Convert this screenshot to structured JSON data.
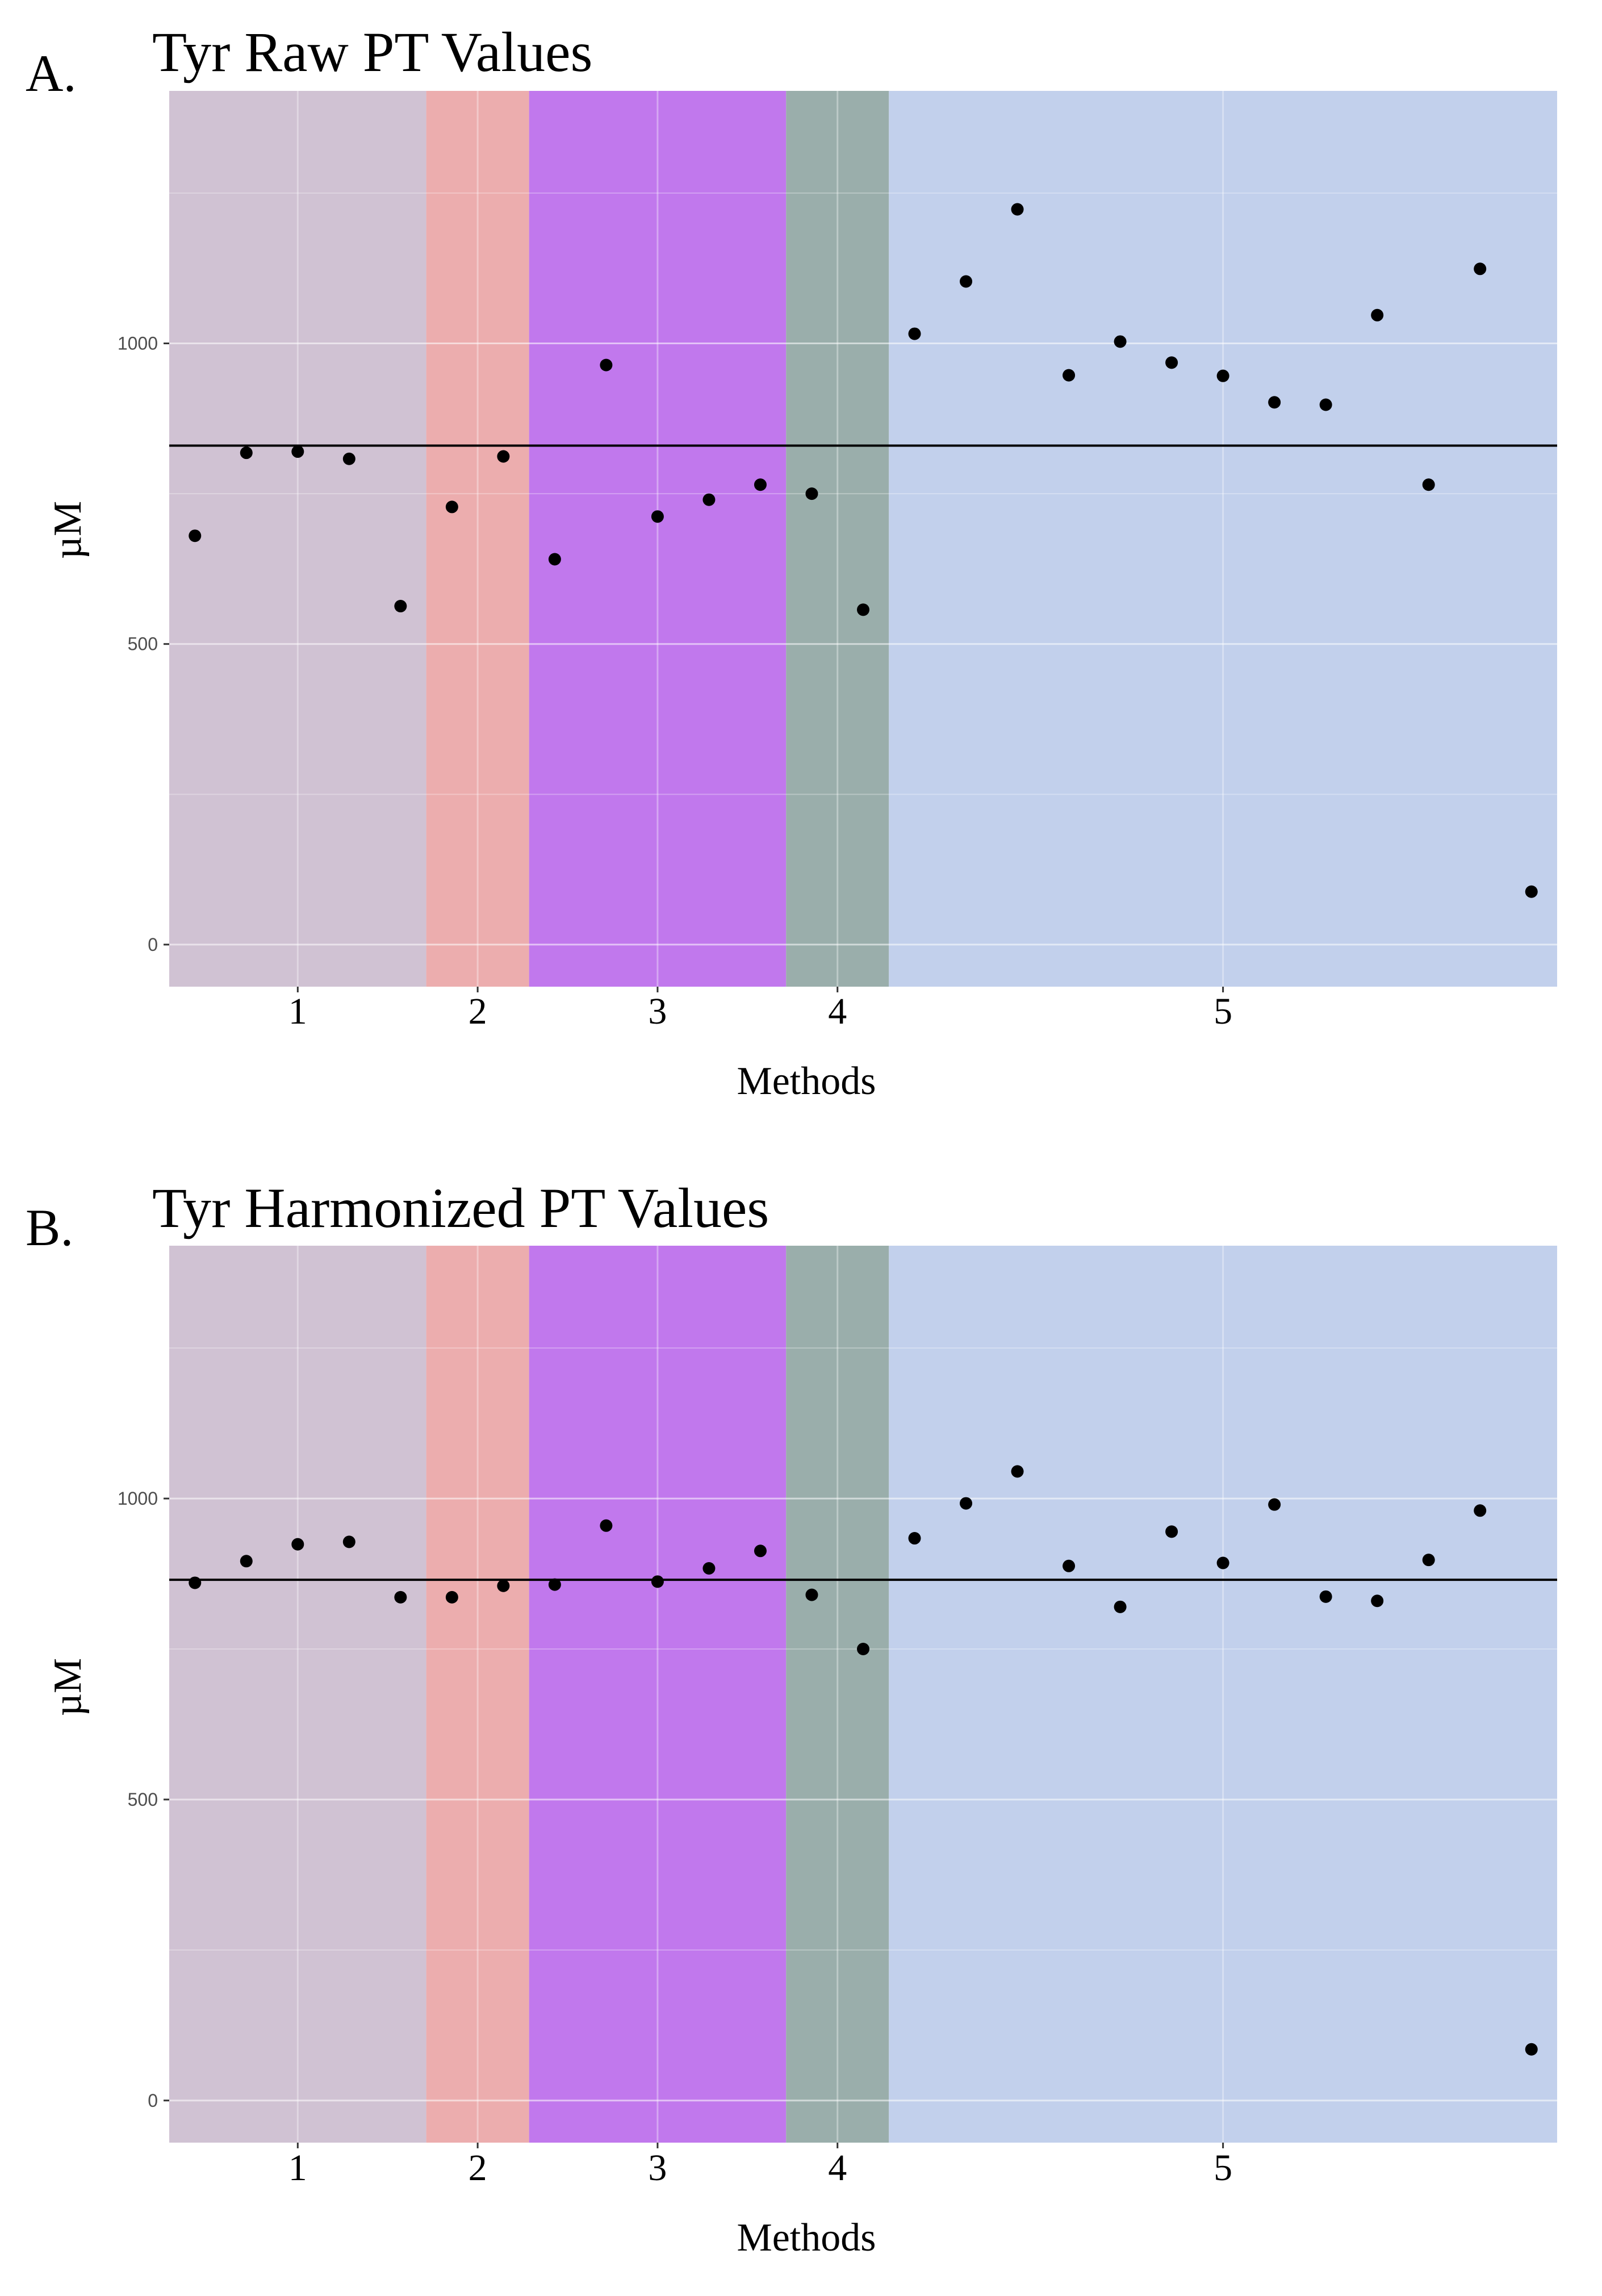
{
  "colors": {
    "method_1": "#d0c2d3",
    "method_2": "#ecadae",
    "method_3": "#c178ed",
    "method_4": "#9aaeab",
    "method_5": "#c2d0ec",
    "points": "#000000",
    "reference_line": "#000000",
    "gridline": "#ffffff"
  },
  "chart_data": [
    {
      "panel_label": "A.",
      "type": "scatter",
      "title": "Tyr Raw PT Values",
      "xlabel": "Methods",
      "ylabel": "µM",
      "ylim": [
        -70,
        1420
      ],
      "yticks": [
        0,
        500,
        1000
      ],
      "y_tick_labels": [
        "0",
        "500",
        "1000"
      ],
      "grid": true,
      "method_bands": [
        {
          "label": "1",
          "start": 0.5,
          "end": 5.5
        },
        {
          "label": "2",
          "start": 5.5,
          "end": 7.5
        },
        {
          "label": "3",
          "start": 7.5,
          "end": 12.5
        },
        {
          "label": "4",
          "start": 12.5,
          "end": 14.5
        },
        {
          "label": "5",
          "start": 14.5,
          "end": 27.5
        }
      ],
      "x_index_range": [
        0.5,
        27.5
      ],
      "reference_line": 830,
      "points": [
        {
          "x": 1,
          "y": 680,
          "method": "1"
        },
        {
          "x": 2,
          "y": 818,
          "method": "1"
        },
        {
          "x": 3,
          "y": 820,
          "method": "1"
        },
        {
          "x": 4,
          "y": 808,
          "method": "1"
        },
        {
          "x": 5,
          "y": 563,
          "method": "1"
        },
        {
          "x": 6,
          "y": 728,
          "method": "2"
        },
        {
          "x": 7,
          "y": 812,
          "method": "2"
        },
        {
          "x": 8,
          "y": 641,
          "method": "3"
        },
        {
          "x": 9,
          "y": 964,
          "method": "3"
        },
        {
          "x": 10,
          "y": 712,
          "method": "3"
        },
        {
          "x": 11,
          "y": 740,
          "method": "3"
        },
        {
          "x": 12,
          "y": 765,
          "method": "3"
        },
        {
          "x": 13,
          "y": 750,
          "method": "4"
        },
        {
          "x": 14,
          "y": 557,
          "method": "4"
        },
        {
          "x": 15,
          "y": 1016,
          "method": "5"
        },
        {
          "x": 16,
          "y": 1103,
          "method": "5"
        },
        {
          "x": 17,
          "y": 1223,
          "method": "5"
        },
        {
          "x": 18,
          "y": 947,
          "method": "5"
        },
        {
          "x": 19,
          "y": 1003,
          "method": "5"
        },
        {
          "x": 20,
          "y": 968,
          "method": "5"
        },
        {
          "x": 21,
          "y": 946,
          "method": "5"
        },
        {
          "x": 22,
          "y": 902,
          "method": "5"
        },
        {
          "x": 23,
          "y": 898,
          "method": "5"
        },
        {
          "x": 24,
          "y": 1047,
          "method": "5"
        },
        {
          "x": 25,
          "y": 765,
          "method": "5"
        },
        {
          "x": 26,
          "y": 1124,
          "method": "5"
        },
        {
          "x": 27,
          "y": 88,
          "method": "5"
        }
      ]
    },
    {
      "panel_label": "B.",
      "type": "scatter",
      "title": "Tyr Harmonized PT Values",
      "xlabel": "Methods",
      "ylabel": "µM",
      "ylim": [
        -70,
        1420
      ],
      "yticks": [
        0,
        500,
        1000
      ],
      "y_tick_labels": [
        "0",
        "500",
        "1000"
      ],
      "grid": true,
      "method_bands": [
        {
          "label": "1",
          "start": 0.5,
          "end": 5.5
        },
        {
          "label": "2",
          "start": 5.5,
          "end": 7.5
        },
        {
          "label": "3",
          "start": 7.5,
          "end": 12.5
        },
        {
          "label": "4",
          "start": 12.5,
          "end": 14.5
        },
        {
          "label": "5",
          "start": 14.5,
          "end": 27.5
        }
      ],
      "x_index_range": [
        0.5,
        27.5
      ],
      "reference_line": 865,
      "points": [
        {
          "x": 1,
          "y": 860,
          "method": "1"
        },
        {
          "x": 2,
          "y": 896,
          "method": "1"
        },
        {
          "x": 3,
          "y": 924,
          "method": "1"
        },
        {
          "x": 4,
          "y": 928,
          "method": "1"
        },
        {
          "x": 5,
          "y": 836,
          "method": "1"
        },
        {
          "x": 6,
          "y": 836,
          "method": "2"
        },
        {
          "x": 7,
          "y": 855,
          "method": "2"
        },
        {
          "x": 8,
          "y": 857,
          "method": "3"
        },
        {
          "x": 9,
          "y": 955,
          "method": "3"
        },
        {
          "x": 10,
          "y": 862,
          "method": "3"
        },
        {
          "x": 11,
          "y": 884,
          "method": "3"
        },
        {
          "x": 12,
          "y": 913,
          "method": "3"
        },
        {
          "x": 13,
          "y": 840,
          "method": "4"
        },
        {
          "x": 14,
          "y": 750,
          "method": "4"
        },
        {
          "x": 15,
          "y": 934,
          "method": "5"
        },
        {
          "x": 16,
          "y": 992,
          "method": "5"
        },
        {
          "x": 17,
          "y": 1045,
          "method": "5"
        },
        {
          "x": 18,
          "y": 888,
          "method": "5"
        },
        {
          "x": 19,
          "y": 820,
          "method": "5"
        },
        {
          "x": 20,
          "y": 945,
          "method": "5"
        },
        {
          "x": 21,
          "y": 893,
          "method": "5"
        },
        {
          "x": 22,
          "y": 990,
          "method": "5"
        },
        {
          "x": 23,
          "y": 837,
          "method": "5"
        },
        {
          "x": 24,
          "y": 830,
          "method": "5"
        },
        {
          "x": 25,
          "y": 898,
          "method": "5"
        },
        {
          "x": 26,
          "y": 980,
          "method": "5"
        },
        {
          "x": 27,
          "y": 85,
          "method": "5"
        }
      ]
    }
  ]
}
